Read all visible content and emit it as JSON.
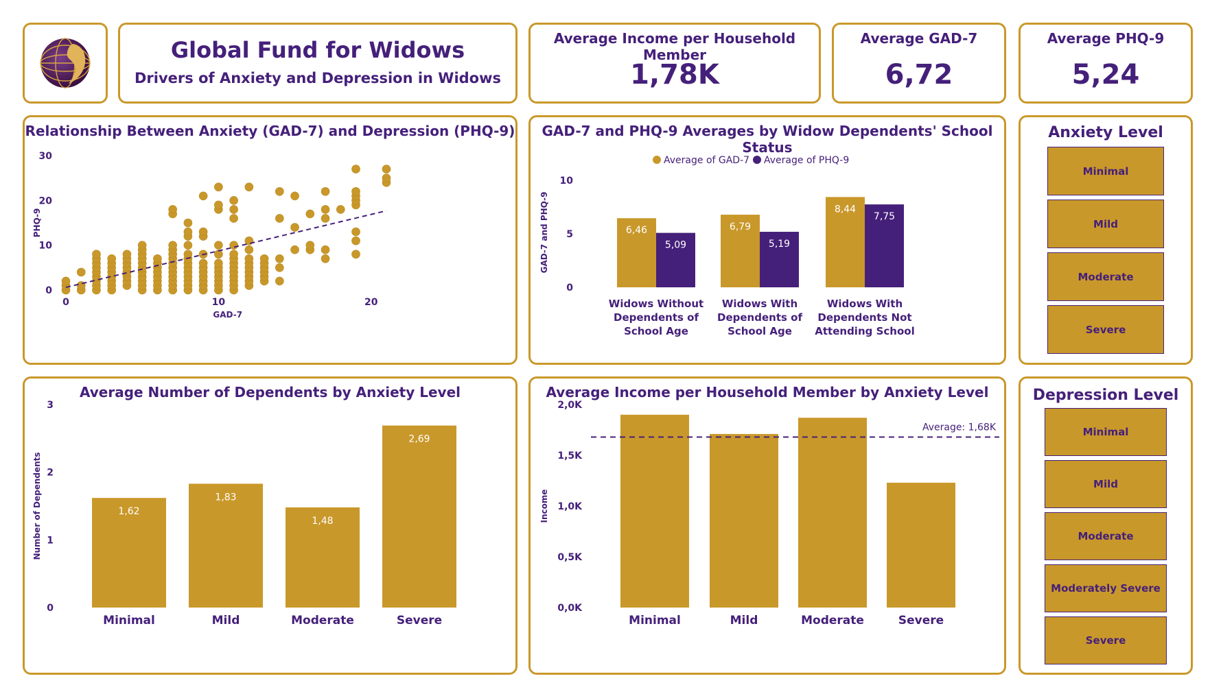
{
  "header": {
    "title": "Global Fund for Widows",
    "subtitle": "Drivers of Anxiety and Depression in Widows",
    "logo_icon": "globe-woman-logo-icon"
  },
  "kpis": {
    "income": {
      "title": "Average Income per Household Member",
      "value": "1,78K"
    },
    "gad7": {
      "title": "Average GAD-7",
      "value": "6,72"
    },
    "phq9": {
      "title": "Average PHQ-9",
      "value": "5,24"
    }
  },
  "colors": {
    "gold": "#c9982a",
    "purple": "#45207a",
    "white": "#ffffff"
  },
  "slicers": {
    "anxiety": {
      "title": "Anxiety Level",
      "items": [
        "Minimal",
        "Mild",
        "Moderate",
        "Severe"
      ]
    },
    "depression": {
      "title": "Depression Level",
      "items": [
        "Minimal",
        "Mild",
        "Moderate",
        "Moderately Severe",
        "Severe"
      ]
    }
  },
  "chart_data": [
    {
      "id": "scatter",
      "type": "scatter",
      "title": "Relationship Between Anxiety (GAD-7) and Depression (PHQ-9)",
      "xlabel": "GAD-7",
      "ylabel": "PHQ-9",
      "xlim": [
        0,
        21
      ],
      "ylim": [
        0,
        30
      ],
      "xticks": [
        0,
        10,
        20
      ],
      "yticks": [
        0,
        10,
        20,
        30
      ],
      "trendline": {
        "x1": 0,
        "y1": 0.6,
        "x2": 21,
        "y2": 17.7
      },
      "columns": [
        {
          "x": 0,
          "ys": [
            0,
            1,
            2
          ]
        },
        {
          "x": 1,
          "ys": [
            0,
            1,
            4
          ]
        },
        {
          "x": 2,
          "ys": [
            0,
            1,
            2,
            3,
            4,
            5,
            6,
            7,
            8
          ]
        },
        {
          "x": 3,
          "ys": [
            0,
            1,
            2,
            3,
            4,
            5,
            6,
            7
          ]
        },
        {
          "x": 4,
          "ys": [
            1,
            2,
            3,
            4,
            5,
            6,
            7,
            8
          ]
        },
        {
          "x": 5,
          "ys": [
            0,
            1,
            2,
            3,
            4,
            5,
            6,
            7,
            8,
            9,
            10
          ]
        },
        {
          "x": 6,
          "ys": [
            0,
            1,
            2,
            3,
            4,
            5,
            6,
            7
          ]
        },
        {
          "x": 7,
          "ys": [
            0,
            1,
            2,
            3,
            4,
            5,
            6,
            7,
            8,
            9,
            10,
            17,
            18
          ]
        },
        {
          "x": 8,
          "ys": [
            0,
            1,
            2,
            3,
            4,
            5,
            6,
            7,
            8,
            10,
            12,
            13,
            15
          ]
        },
        {
          "x": 9,
          "ys": [
            0,
            1,
            2,
            3,
            4,
            5,
            6,
            8,
            12,
            13,
            21
          ]
        },
        {
          "x": 10,
          "ys": [
            0,
            1,
            2,
            3,
            4,
            5,
            6,
            8,
            10,
            18,
            19,
            23
          ]
        },
        {
          "x": 11,
          "ys": [
            0,
            1,
            2,
            3,
            4,
            5,
            6,
            7,
            8,
            10,
            16,
            18,
            20
          ]
        },
        {
          "x": 12,
          "ys": [
            1,
            2,
            3,
            4,
            5,
            6,
            7,
            9,
            11,
            23
          ]
        },
        {
          "x": 13,
          "ys": [
            2,
            3,
            4,
            5,
            6,
            7
          ]
        },
        {
          "x": 14,
          "ys": [
            2,
            5,
            7,
            16,
            22
          ]
        },
        {
          "x": 15,
          "ys": [
            9,
            14,
            21
          ]
        },
        {
          "x": 16,
          "ys": [
            9,
            10,
            17
          ]
        },
        {
          "x": 17,
          "ys": [
            7,
            9,
            16,
            18,
            22
          ]
        },
        {
          "x": 18,
          "ys": [
            18
          ]
        },
        {
          "x": 19,
          "ys": [
            8,
            11,
            13,
            19,
            20,
            21,
            22,
            27
          ]
        },
        {
          "x": 21,
          "ys": [
            24,
            25,
            27
          ]
        }
      ]
    },
    {
      "id": "school",
      "type": "bar",
      "title": "GAD-7 and PHQ-9 Averages by Widow Dependents' School Status",
      "ylabel": "GAD-7 and PHQ-9",
      "ylim": [
        0,
        10
      ],
      "yticks": [
        0,
        5,
        10
      ],
      "categories": [
        [
          "Widows Without",
          "Dependents of",
          "School Age"
        ],
        [
          "Widows With",
          "Dependents of",
          "School Age"
        ],
        [
          "Widows With",
          "Dependents Not",
          "Attending School"
        ]
      ],
      "series": [
        {
          "name": "Average of GAD-7",
          "color": "#c9982a",
          "values": [
            6.46,
            6.79,
            8.44
          ],
          "labels": [
            "6,46",
            "6,79",
            "8,44"
          ]
        },
        {
          "name": "Average of PHQ-9",
          "color": "#45207a",
          "values": [
            5.09,
            5.19,
            7.75
          ],
          "labels": [
            "5,09",
            "5,19",
            "7,75"
          ]
        }
      ]
    },
    {
      "id": "dependents",
      "type": "bar",
      "title": "Average Number of Dependents by Anxiety Level",
      "ylabel": "Number of Dependents",
      "ylim": [
        0,
        3
      ],
      "yticks": [
        0,
        1,
        2,
        3
      ],
      "categories": [
        "Minimal",
        "Mild",
        "Moderate",
        "Severe"
      ],
      "values": [
        1.62,
        1.83,
        1.48,
        2.69
      ],
      "labels": [
        "1,62",
        "1,83",
        "1,48",
        "2,69"
      ]
    },
    {
      "id": "income",
      "type": "bar",
      "title": "Average Income per Household Member by Anxiety Level",
      "ylabel": "Income",
      "ylim": [
        0,
        2000
      ],
      "yticks": [
        0,
        500,
        1000,
        1500,
        2000
      ],
      "ytick_labels": [
        "0,0K",
        "0,5K",
        "1,0K",
        "1,5K",
        "2,0K"
      ],
      "categories": [
        "Minimal",
        "Mild",
        "Moderate",
        "Severe"
      ],
      "values": [
        1900,
        1710,
        1870,
        1230
      ],
      "average": 1680,
      "average_label": "Average: 1,68K"
    }
  ]
}
